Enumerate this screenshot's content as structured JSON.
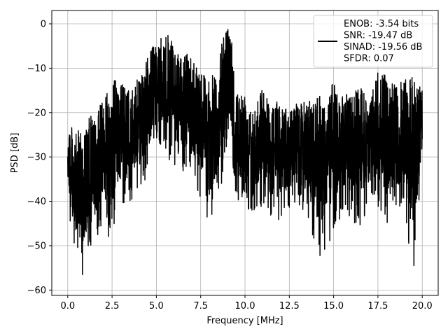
{
  "chart_data": {
    "type": "line",
    "title": "",
    "xlabel": "Frequency [MHz]",
    "ylabel": "PSD [dB]",
    "xlim": [
      -0.9,
      20.9
    ],
    "ylim": [
      -61.2,
      3.0
    ],
    "xticks": [
      0.0,
      2.5,
      5.0,
      7.5,
      10.0,
      12.5,
      15.0,
      17.5,
      20.0
    ],
    "xtick_labels": [
      "0.0",
      "2.5",
      "5.0",
      "7.5",
      "10.0",
      "12.5",
      "15.0",
      "17.5",
      "20.0"
    ],
    "yticks": [
      0,
      -10,
      -20,
      -30,
      -40,
      -50,
      -60
    ],
    "ytick_labels": [
      "0",
      "−10",
      "−20",
      "−30",
      "−40",
      "−50",
      "−60"
    ],
    "grid": true,
    "legend_position": "top-right",
    "legend_entries": [
      "ENOB: -3.54 bits",
      "SNR: -19.47 dB",
      "SINAD: -19.56 dB",
      "SFDR: 0.07"
    ],
    "series": [
      {
        "color": "#000000",
        "envelope": {
          "description_note": "noisy PSD trace; upper and lower envelopes read from the chart",
          "x": [
            0.0,
            0.2,
            0.5,
            0.8,
            1.0,
            1.3,
            1.6,
            2.0,
            2.4,
            2.8,
            3.2,
            3.6,
            4.0,
            4.4,
            4.8,
            5.0,
            5.3,
            5.6,
            6.0,
            6.4,
            6.8,
            7.2,
            7.6,
            8.0,
            8.4,
            8.8,
            9.0,
            9.2,
            9.5,
            10.0,
            10.5,
            11.0,
            11.5,
            12.0,
            12.5,
            13.0,
            13.5,
            14.0,
            14.5,
            15.0,
            15.5,
            16.0,
            16.5,
            17.0,
            17.5,
            18.0,
            18.5,
            19.0,
            19.5,
            20.0
          ],
          "upper": [
            -20,
            -23,
            -25,
            -22,
            -24,
            -20,
            -22,
            -15,
            -13,
            -12,
            -14,
            -15,
            -12,
            -8,
            -5,
            -5,
            -3,
            -2,
            -5,
            -8,
            -6,
            -8,
            -10,
            -12,
            -11,
            -2,
            0,
            0,
            -15,
            -15,
            -18,
            -14,
            -18,
            -17,
            -20,
            -17,
            -18,
            -14,
            -17,
            -13,
            -16,
            -15,
            -14,
            -18,
            -10,
            -12,
            -14,
            -12,
            -12,
            -13
          ],
          "lower": [
            -38,
            -50,
            -53,
            -57,
            -55,
            -52,
            -49,
            -45,
            -50,
            -43,
            -42,
            -40,
            -38,
            -36,
            -30,
            -27,
            -28,
            -30,
            -32,
            -33,
            -35,
            -38,
            -40,
            -46,
            -40,
            -35,
            -25,
            -28,
            -40,
            -42,
            -42,
            -41,
            -45,
            -45,
            -42,
            -41,
            -43,
            -52,
            -53,
            -47,
            -43,
            -44,
            -47,
            -41,
            -41,
            -47,
            -43,
            -43,
            -58,
            -32
          ]
        }
      }
    ]
  }
}
